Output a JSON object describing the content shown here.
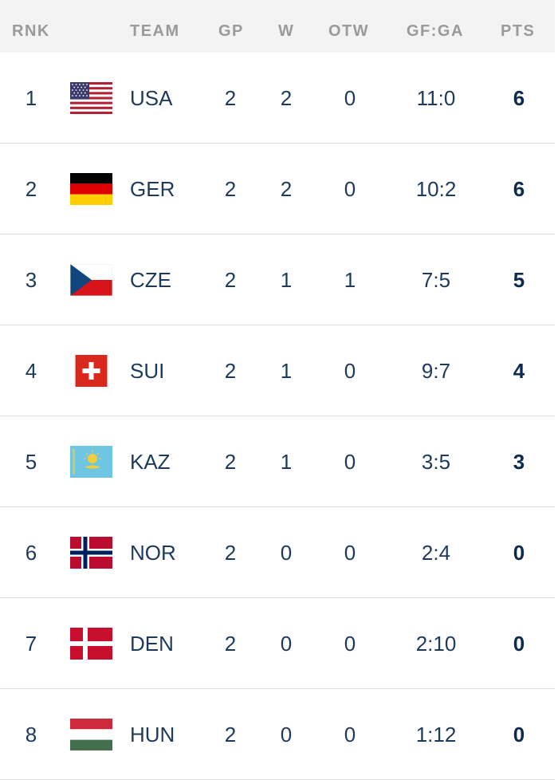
{
  "columns": {
    "rank": "RNK",
    "team": "TEAM",
    "gp": "GP",
    "w": "W",
    "otw": "OTW",
    "gfga": "GF:GA",
    "pts": "PTS"
  },
  "rows": [
    {
      "rank": "1",
      "flag": "usa-flag-icon",
      "team": "USA",
      "gp": "2",
      "w": "2",
      "otw": "0",
      "gfga": "11:0",
      "pts": "6"
    },
    {
      "rank": "2",
      "flag": "germany-flag-icon",
      "team": "GER",
      "gp": "2",
      "w": "2",
      "otw": "0",
      "gfga": "10:2",
      "pts": "6"
    },
    {
      "rank": "3",
      "flag": "czechia-flag-icon",
      "team": "CZE",
      "gp": "2",
      "w": "1",
      "otw": "1",
      "gfga": "7:5",
      "pts": "5"
    },
    {
      "rank": "4",
      "flag": "switzerland-flag-icon",
      "team": "SUI",
      "gp": "2",
      "w": "1",
      "otw": "0",
      "gfga": "9:7",
      "pts": "4"
    },
    {
      "rank": "5",
      "flag": "kazakhstan-flag-icon",
      "team": "KAZ",
      "gp": "2",
      "w": "1",
      "otw": "0",
      "gfga": "3:5",
      "pts": "3"
    },
    {
      "rank": "6",
      "flag": "norway-flag-icon",
      "team": "NOR",
      "gp": "2",
      "w": "0",
      "otw": "0",
      "gfga": "2:4",
      "pts": "0"
    },
    {
      "rank": "7",
      "flag": "denmark-flag-icon",
      "team": "DEN",
      "gp": "2",
      "w": "0",
      "otw": "0",
      "gfga": "2:10",
      "pts": "0"
    },
    {
      "rank": "8",
      "flag": "hungary-flag-icon",
      "team": "HUN",
      "gp": "2",
      "w": "0",
      "otw": "0",
      "gfga": "1:12",
      "pts": "0"
    }
  ],
  "colors": {
    "header_bg": "#f3f3f3",
    "header_text": "#9a9a9a",
    "cell_text": "#1d3a5c",
    "divider": "#dedede"
  }
}
